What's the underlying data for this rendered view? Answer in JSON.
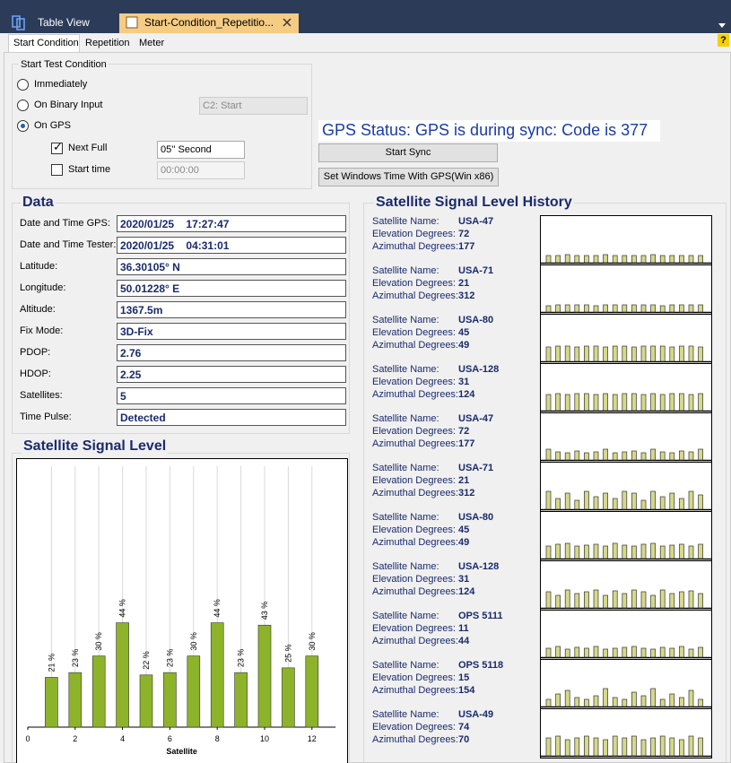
{
  "window_tabs": [
    "Table View",
    "Start-Condition_Repetitio..."
  ],
  "help_icon": "?",
  "sub_tabs": [
    "Start Condition",
    "Repetition",
    "Meter"
  ],
  "start_test_condition": {
    "title": "Start Test Condition",
    "options": [
      "Immediately",
      "On Binary Input",
      "On GPS"
    ],
    "selected_option": 2,
    "binary_input_select": "C2: Start",
    "next_full_label": "Next Full",
    "next_full_checked": true,
    "next_full_value": "05'' Second",
    "start_time_label": "Start time",
    "start_time_checked": false,
    "start_time_value": "00:00:00"
  },
  "gps_status": "GPS Status: GPS is during sync: Code is 377",
  "buttons": [
    "Start Sync",
    "Set Windows Time With GPS(Win x86)"
  ],
  "data_panel": {
    "title": "Data",
    "rows": [
      [
        "Date and Time GPS:",
        "2020/01/25    17:27:47"
      ],
      [
        "Date and Time Tester:",
        "2020/01/25    04:31:01"
      ],
      [
        "Latitude:",
        "36.30105° N"
      ],
      [
        "Longitude:",
        "50.01228° E"
      ],
      [
        "Altitude:",
        "1367.5m"
      ],
      [
        "Fix Mode:",
        "3D-Fix"
      ],
      [
        "PDOP:",
        "2.76"
      ],
      [
        "HDOP:",
        "2.25"
      ],
      [
        "Satellites:",
        "5"
      ],
      [
        "Time Pulse:",
        "Detected"
      ]
    ]
  },
  "chart_data": {
    "type": "bar",
    "title": "Satellite Signal Level",
    "xlabel": "Satellite",
    "x": [
      1,
      2,
      3,
      4,
      5,
      6,
      7,
      8,
      9,
      10,
      11,
      12
    ],
    "values": [
      21,
      23,
      30,
      44,
      22,
      23,
      30,
      44,
      23,
      43,
      25,
      30
    ],
    "value_labels": [
      "21 %",
      "23 %",
      "30 %",
      "44 %",
      "22 %",
      "23 %",
      "30 %",
      "44 %",
      "23 %",
      "43 %",
      "25 %",
      "30 %"
    ],
    "xlim": [
      0,
      13
    ],
    "xticks": [
      0,
      2,
      4,
      6,
      8,
      10,
      12
    ],
    "ylim": [
      0,
      110
    ],
    "grid": true,
    "color": "#8db32b"
  },
  "history": {
    "title": "Satellite Signal Level History",
    "field_labels": [
      "Satellite Name:",
      "Elevation Degrees:",
      "Azimuthal Degrees:"
    ],
    "satellites": [
      {
        "name": "USA-47",
        "elevation": 72,
        "azimuth": 177,
        "levels": [
          8,
          8,
          9,
          8,
          8,
          8,
          9,
          8,
          8,
          8,
          8,
          9,
          8,
          8,
          8,
          8,
          8
        ]
      },
      {
        "name": "USA-71",
        "elevation": 21,
        "azimuth": 312,
        "levels": [
          7,
          8,
          8,
          8,
          8,
          7,
          8,
          8,
          8,
          8,
          8,
          8,
          7,
          8,
          8,
          8,
          8
        ]
      },
      {
        "name": "USA-80",
        "elevation": 45,
        "azimuth": 49,
        "levels": [
          16,
          17,
          17,
          16,
          17,
          17,
          16,
          17,
          17,
          16,
          17,
          17,
          17,
          16,
          17,
          17,
          16
        ]
      },
      {
        "name": "USA-128",
        "elevation": 31,
        "azimuth": 124,
        "levels": [
          18,
          19,
          18,
          19,
          19,
          18,
          19,
          18,
          19,
          19,
          18,
          19,
          18,
          19,
          19,
          18,
          19
        ]
      },
      {
        "name": "USA-47",
        "elevation": 72,
        "azimuth": 177,
        "levels": [
          12,
          9,
          8,
          10,
          8,
          9,
          12,
          8,
          9,
          10,
          8,
          12,
          9,
          8,
          10,
          9,
          12
        ]
      },
      {
        "name": "USA-71",
        "elevation": 21,
        "azimuth": 312,
        "levels": [
          20,
          12,
          18,
          10,
          20,
          14,
          18,
          12,
          20,
          18,
          10,
          20,
          14,
          18,
          12,
          20,
          16
        ]
      },
      {
        "name": "USA-80",
        "elevation": 45,
        "azimuth": 49,
        "levels": [
          14,
          16,
          17,
          14,
          15,
          16,
          14,
          17,
          15,
          14,
          16,
          17,
          14,
          15,
          16,
          14,
          16
        ]
      },
      {
        "name": "USA-128",
        "elevation": 31,
        "azimuth": 124,
        "levels": [
          18,
          14,
          20,
          16,
          18,
          20,
          14,
          19,
          16,
          20,
          18,
          14,
          20,
          16,
          18,
          19,
          16
        ]
      },
      {
        "name": "OPS 5111",
        "elevation": 11,
        "azimuth": 44,
        "levels": [
          10,
          12,
          9,
          11,
          10,
          12,
          9,
          10,
          11,
          12,
          10,
          9,
          11,
          10,
          12,
          9,
          11
        ]
      },
      {
        "name": "OPS 5118",
        "elevation": 15,
        "azimuth": 154,
        "levels": [
          8,
          14,
          18,
          10,
          8,
          12,
          20,
          10,
          8,
          16,
          12,
          20,
          8,
          14,
          10,
          18,
          8
        ]
      },
      {
        "name": "USA-49",
        "elevation": 74,
        "azimuth": 70,
        "levels": [
          20,
          22,
          18,
          20,
          22,
          20,
          18,
          22,
          20,
          22,
          18,
          20,
          22,
          20,
          18,
          22,
          20
        ]
      }
    ]
  }
}
